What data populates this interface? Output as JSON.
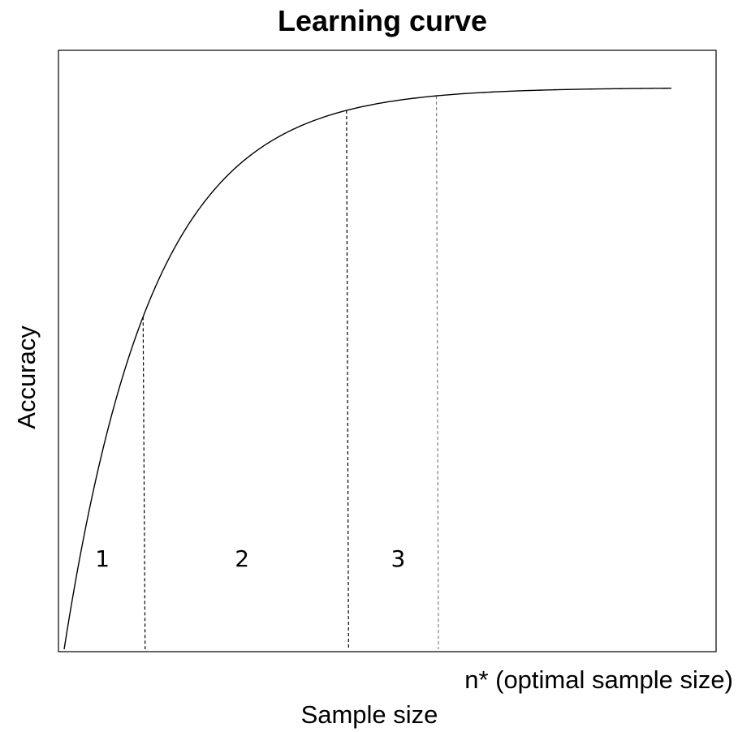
{
  "chart_data": {
    "type": "line",
    "title": "Learning curve",
    "xlabel": "Sample size",
    "ylabel": "Accuracy",
    "curve": {
      "form": "saturating",
      "shape": "1 - exp(-x/tau)",
      "x_start": 0,
      "x_end": 1,
      "asymptote": 1,
      "tau": 0.145
    },
    "dividers": [
      {
        "x": 0.13,
        "style": "dashed"
      },
      {
        "x": 0.465,
        "style": "dashed"
      },
      {
        "x": 0.613,
        "style": "dashed",
        "color": "#808080"
      }
    ],
    "regions": [
      {
        "label": "1",
        "x_center": 0.063
      },
      {
        "label": "2",
        "x_center": 0.293
      },
      {
        "label": "3",
        "x_center": 0.55
      }
    ],
    "annotation": {
      "text": "n* (optimal sample size)",
      "anchor_divider_index": 2
    },
    "grid": false,
    "legend": "none",
    "ticks": false
  }
}
